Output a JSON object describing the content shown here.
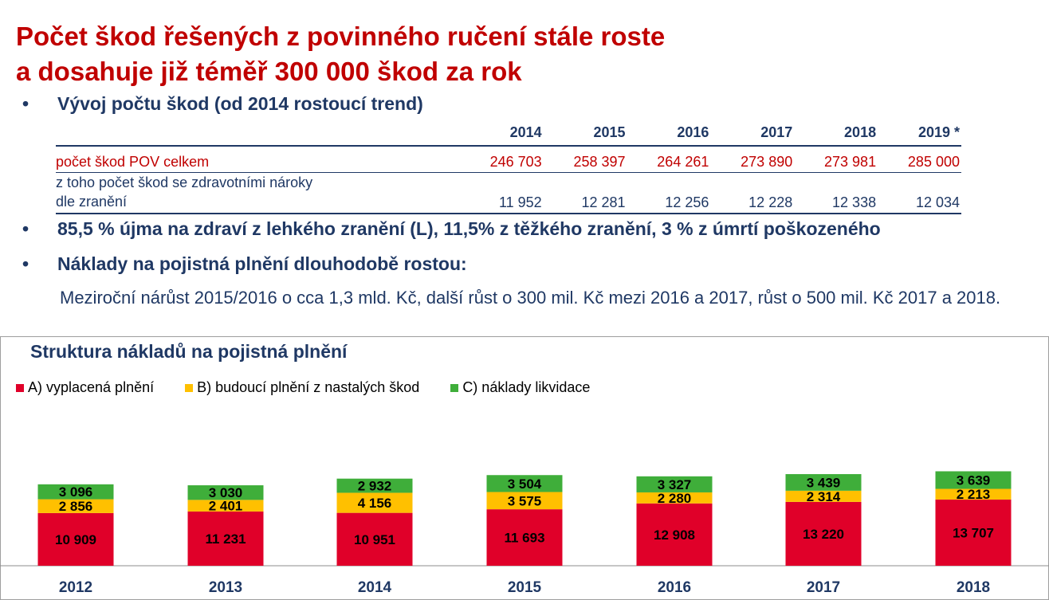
{
  "title": {
    "line1": "Počet škod řešených z povinného ručení stále roste",
    "line2": "a dosahuje již téměř 300 000 škod za rok"
  },
  "bullets": {
    "marker": "•",
    "b1": "Vývoj počtu škod (od 2014 rostoucí trend)",
    "b2": "85,5 % újma na zdraví z lehkého zranění (L), 11,5% z těžkého zranění, 3 % z úmrtí poškozeného",
    "b3": "Náklady na pojistná plnění dlouhodobě rostou:",
    "paragraph": "Meziroční nárůst 2015/2016 o cca 1,3 mld. Kč, další růst o 300 mil. Kč mezi  2016 a 2017, růst o 500 mil. Kč 2017 a 2018."
  },
  "stats_table": {
    "years": [
      "2014",
      "2015",
      "2016",
      "2017",
      "2018",
      "2019 *"
    ],
    "row1_label": "počet škod POV celkem",
    "row1_values": [
      "246 703",
      "258 397",
      "264 261",
      "273 890",
      "273 981",
      "285 000"
    ],
    "row2_label_line1": "z toho počet škod se zdravotními nároky",
    "row2_label_line2": "dle zranění",
    "row2_values": [
      "11 952",
      "12 281",
      "12 256",
      "12 228",
      "12 338",
      "12 034"
    ]
  },
  "chart_data": {
    "type": "bar",
    "stacked": true,
    "title": "Struktura nákladů na pojistná plnění",
    "categories": [
      "2012",
      "2013",
      "2014",
      "2015",
      "2016",
      "2017",
      "2018"
    ],
    "series": [
      {
        "name": "A) vyplacená plnění",
        "color": "#e00029",
        "values": [
          10909,
          11231,
          10951,
          11693,
          12908,
          13220,
          13707
        ],
        "labels": [
          "10 909",
          "11 231",
          "10 951",
          "11 693",
          "12 908",
          "13 220",
          "13 707"
        ]
      },
      {
        "name": "B) budoucí plnění z nastalých škod",
        "color": "#ffc000",
        "values": [
          2856,
          2401,
          4156,
          3575,
          2280,
          2314,
          2213
        ],
        "labels": [
          "2 856",
          "2 401",
          "4 156",
          "3 575",
          "2 280",
          "2 314",
          "2 213"
        ]
      },
      {
        "name": "C) náklady likvidace",
        "color": "#3fae3a",
        "values": [
          3096,
          3030,
          2932,
          3504,
          3327,
          3439,
          3639
        ],
        "labels": [
          "3 096",
          "3 030",
          "2 932",
          "3 504",
          "3 327",
          "3 439",
          "3 639"
        ]
      }
    ],
    "legend_position": "top-left",
    "grid": false
  }
}
